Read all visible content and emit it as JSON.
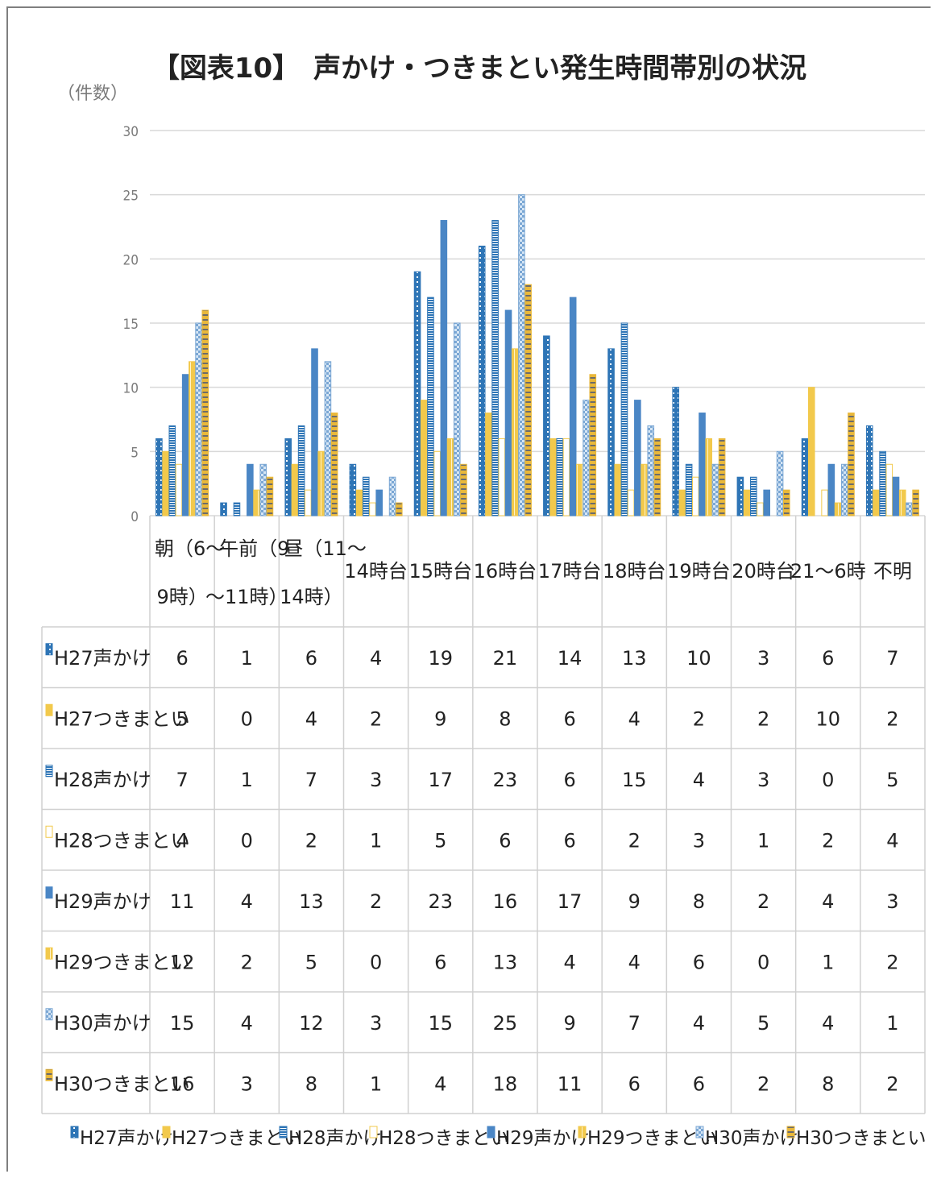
{
  "chart_data": {
    "type": "bar",
    "title": "【図表10】　声かけ・つきまとい発生時間帯別の状況",
    "ylabel": "（件数）",
    "ylim": [
      0,
      30
    ],
    "yticks": [
      0,
      5,
      10,
      15,
      20,
      25,
      30
    ],
    "grid": true,
    "legend_position": "bottom",
    "categories": [
      [
        "朝（6～",
        "9時）"
      ],
      [
        "午前（9",
        "～11時）"
      ],
      [
        "昼（11～",
        "14時）"
      ],
      [
        "14時台"
      ],
      [
        "15時台"
      ],
      [
        "16時台"
      ],
      [
        "17時台"
      ],
      [
        "18時台"
      ],
      [
        "19時台"
      ],
      [
        "20時台"
      ],
      [
        "21～6時"
      ],
      [
        "不明"
      ]
    ],
    "series": [
      {
        "name": "H27声かけ",
        "color": "#2e75b6",
        "pattern": "dots",
        "values": [
          6,
          1,
          6,
          4,
          19,
          21,
          14,
          13,
          10,
          3,
          6,
          7
        ]
      },
      {
        "name": "H27つきまとい",
        "color": "#f2c94c",
        "pattern": "solid",
        "values": [
          5,
          0,
          4,
          2,
          9,
          8,
          6,
          4,
          2,
          2,
          10,
          2
        ]
      },
      {
        "name": "H28声かけ",
        "color": "#2e75b6",
        "pattern": "hstripes",
        "values": [
          7,
          1,
          7,
          3,
          17,
          23,
          6,
          15,
          4,
          3,
          0,
          5
        ]
      },
      {
        "name": "H28つきまとい",
        "color": "#f2c94c",
        "pattern": "outline",
        "values": [
          4,
          0,
          2,
          1,
          5,
          6,
          6,
          2,
          3,
          1,
          2,
          4
        ]
      },
      {
        "name": "H29声かけ",
        "color": "#4a86c5",
        "pattern": "solid",
        "values": [
          11,
          4,
          13,
          2,
          23,
          16,
          17,
          9,
          8,
          2,
          4,
          3
        ]
      },
      {
        "name": "H29つきまとい",
        "color": "#f2c94c",
        "pattern": "vstripes",
        "values": [
          12,
          2,
          5,
          0,
          6,
          13,
          4,
          4,
          6,
          0,
          1,
          2
        ]
      },
      {
        "name": "H30声かけ",
        "color": "#7ba7d4",
        "pattern": "checker",
        "values": [
          15,
          4,
          12,
          3,
          15,
          25,
          9,
          7,
          4,
          5,
          4,
          1
        ]
      },
      {
        "name": "H30つきまとい",
        "color": "#e9b83a",
        "pattern": "diag",
        "values": [
          16,
          3,
          8,
          1,
          4,
          18,
          11,
          6,
          6,
          2,
          8,
          2
        ]
      }
    ]
  }
}
